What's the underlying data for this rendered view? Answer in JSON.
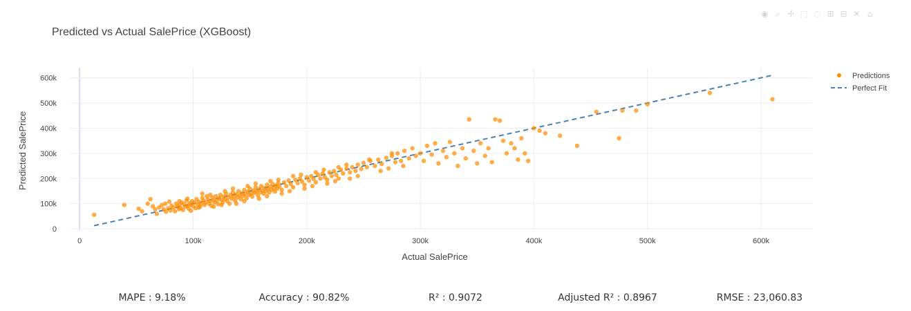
{
  "toolbar": {
    "icons": [
      "camera-icon",
      "zoom-icon",
      "pan-icon",
      "box-select-icon",
      "lasso-icon",
      "zoom-in-icon",
      "zoom-out-icon",
      "autoscale-icon",
      "home-icon"
    ]
  },
  "metrics": {
    "mape": "MAPE : 9.18%",
    "accuracy": "Accuracy : 90.82%",
    "r2": "R² : 0.9072",
    "adj_r2": "Adjusted R² : 0.8967",
    "rmse": "RMSE : 23,060.83"
  },
  "colors": {
    "points": "#ff8c00",
    "fit_line": "#4682b4",
    "grid": "#ececf4",
    "text": "#444444"
  },
  "chart_data": {
    "type": "scatter",
    "title": "Predicted vs Actual SalePrice (XGBoost)",
    "xlabel": "Actual SalePrice",
    "ylabel": "Predicted SalePrice",
    "xlim": [
      -8000,
      645000
    ],
    "ylim": [
      -5000,
      640000
    ],
    "xticks": [
      0,
      100000,
      200000,
      300000,
      400000,
      500000,
      600000
    ],
    "xtick_labels": [
      "0",
      "100k",
      "200k",
      "300k",
      "400k",
      "500k",
      "600k"
    ],
    "yticks": [
      0,
      100000,
      200000,
      300000,
      400000,
      500000,
      600000
    ],
    "ytick_labels": [
      "0",
      "100k",
      "200k",
      "300k",
      "400k",
      "500k",
      "600k"
    ],
    "grid": true,
    "legend_position": "top-right",
    "series": [
      {
        "name": "Predictions",
        "mode": "markers",
        "points": [
          [
            12789,
            56000
          ],
          [
            39300,
            95000
          ],
          [
            52000,
            80000
          ],
          [
            55000,
            70000
          ],
          [
            60000,
            100000
          ],
          [
            62383,
            118000
          ],
          [
            64500,
            90000
          ],
          [
            66500,
            78000
          ],
          [
            68000,
            60000
          ],
          [
            70000,
            85000
          ],
          [
            72500,
            95000
          ],
          [
            74000,
            78000
          ],
          [
            75500,
            100000
          ],
          [
            76000,
            68000
          ],
          [
            78000,
            82000
          ],
          [
            79000,
            108000
          ],
          [
            80000,
            73000
          ],
          [
            81000,
            92000
          ],
          [
            82500,
            85000
          ],
          [
            84000,
            70000
          ],
          [
            85000,
            100000
          ],
          [
            86000,
            88000
          ],
          [
            87500,
            78000
          ],
          [
            88000,
            95000
          ],
          [
            89000,
            83000
          ],
          [
            90000,
            105000
          ],
          [
            91000,
            75000
          ],
          [
            92000,
            98000
          ],
          [
            93000,
            88000
          ],
          [
            94000,
            112000
          ],
          [
            95000,
            92000
          ],
          [
            96000,
            80000
          ],
          [
            97000,
            102000
          ],
          [
            98000,
            95000
          ],
          [
            99000,
            110000
          ],
          [
            100000,
            90000
          ],
          [
            101000,
            105000
          ],
          [
            102000,
            82000
          ],
          [
            103000,
            118000
          ],
          [
            104000,
            97000
          ],
          [
            105000,
            108000
          ],
          [
            106000,
            88000
          ],
          [
            107000,
            100000
          ],
          [
            108000,
            123000
          ],
          [
            109000,
            112000
          ],
          [
            110000,
            95000
          ],
          [
            111000,
            105000
          ],
          [
            112000,
            130000
          ],
          [
            113000,
            118000
          ],
          [
            114000,
            100000
          ],
          [
            115000,
            110000
          ],
          [
            116000,
            92000
          ],
          [
            117000,
            125000
          ],
          [
            118000,
            115000
          ],
          [
            119000,
            105000
          ],
          [
            120000,
            130000
          ],
          [
            121000,
            112000
          ],
          [
            122000,
            98000
          ],
          [
            123000,
            122000
          ],
          [
            124000,
            135000
          ],
          [
            125000,
            115000
          ],
          [
            126000,
            105000
          ],
          [
            127000,
            128000
          ],
          [
            128000,
            118000
          ],
          [
            129000,
            140000
          ],
          [
            130000,
            110000
          ],
          [
            131000,
            125000
          ],
          [
            132000,
            100000
          ],
          [
            133000,
            135000
          ],
          [
            134000,
            120000
          ],
          [
            135000,
            145000
          ],
          [
            136000,
            128000
          ],
          [
            137000,
            112000
          ],
          [
            138000,
            138000
          ],
          [
            139000,
            125000
          ],
          [
            140000,
            150000
          ],
          [
            141000,
            132000
          ],
          [
            142000,
            118000
          ],
          [
            143000,
            142000
          ],
          [
            144000,
            130000
          ],
          [
            145000,
            155000
          ],
          [
            146000,
            138000
          ],
          [
            147000,
            122000
          ],
          [
            148000,
            148000
          ],
          [
            149000,
            135000
          ],
          [
            150000,
            160000
          ],
          [
            151000,
            140000
          ],
          [
            152000,
            128000
          ],
          [
            153000,
            152000
          ],
          [
            154000,
            143000
          ],
          [
            155000,
            165000
          ],
          [
            156000,
            148000
          ],
          [
            157000,
            132000
          ],
          [
            158000,
            158000
          ],
          [
            159000,
            145000
          ],
          [
            160000,
            170000
          ],
          [
            161000,
            152000
          ],
          [
            162000,
            140000
          ],
          [
            163000,
            162000
          ],
          [
            164000,
            150000
          ],
          [
            165000,
            175000
          ],
          [
            166000,
            158000
          ],
          [
            167000,
            145000
          ],
          [
            168000,
            168000
          ],
          [
            169000,
            155000
          ],
          [
            170000,
            178000
          ],
          [
            171000,
            162000
          ],
          [
            172000,
            148000
          ],
          [
            173000,
            172000
          ],
          [
            174000,
            160000
          ],
          [
            175000,
            182000
          ],
          [
            176000,
            168000
          ],
          [
            178000,
            155000
          ],
          [
            180000,
            185000
          ],
          [
            182000,
            170000
          ],
          [
            184000,
            192000
          ],
          [
            186000,
            178000
          ],
          [
            188000,
            165000
          ],
          [
            190000,
            195000
          ],
          [
            192000,
            182000
          ],
          [
            194000,
            200000
          ],
          [
            196000,
            188000
          ],
          [
            198000,
            175000
          ],
          [
            200000,
            205000
          ],
          [
            202000,
            192000
          ],
          [
            204000,
            210000
          ],
          [
            206000,
            198000
          ],
          [
            208000,
            185000
          ],
          [
            210000,
            215000
          ],
          [
            212000,
            200000
          ],
          [
            214000,
            220000
          ],
          [
            216000,
            205000
          ],
          [
            218000,
            195000
          ],
          [
            220000,
            225000
          ],
          [
            222000,
            210000
          ],
          [
            224000,
            230000
          ],
          [
            226000,
            215000
          ],
          [
            228000,
            200000
          ],
          [
            230000,
            235000
          ],
          [
            232000,
            220000
          ],
          [
            235000,
            240000
          ],
          [
            238000,
            225000
          ],
          [
            240000,
            245000
          ],
          [
            243000,
            230000
          ],
          [
            245000,
            255000
          ],
          [
            248000,
            238000
          ],
          [
            250000,
            262000
          ],
          [
            253000,
            245000
          ],
          [
            256000,
            270000
          ],
          [
            260000,
            250000
          ],
          [
            263000,
            275000
          ],
          [
            266000,
            258000
          ],
          [
            270000,
            282000
          ],
          [
            272000,
            240000
          ],
          [
            275000,
            290000
          ],
          [
            278000,
            265000
          ],
          [
            280000,
            300000
          ],
          [
            283000,
            270000
          ],
          [
            286000,
            310000
          ],
          [
            290000,
            280000
          ],
          [
            293000,
            320000
          ],
          [
            296000,
            290000
          ],
          [
            300000,
            300000
          ],
          [
            303000,
            270000
          ],
          [
            306000,
            330000
          ],
          [
            310000,
            295000
          ],
          [
            313000,
            340000
          ],
          [
            316000,
            260000
          ],
          [
            320000,
            310000
          ],
          [
            323000,
            285000
          ],
          [
            326000,
            345000
          ],
          [
            330000,
            300000
          ],
          [
            333000,
            250000
          ],
          [
            337000,
            320000
          ],
          [
            340000,
            280000
          ],
          [
            343000,
            435000
          ],
          [
            347000,
            310000
          ],
          [
            350000,
            260000
          ],
          [
            353000,
            340000
          ],
          [
            357000,
            290000
          ],
          [
            360000,
            320000
          ],
          [
            363000,
            265000
          ],
          [
            366000,
            435000
          ],
          [
            370000,
            430000
          ],
          [
            373000,
            350000
          ],
          [
            376000,
            300000
          ],
          [
            380000,
            340000
          ],
          [
            383000,
            320000
          ],
          [
            386000,
            275000
          ],
          [
            389000,
            360000
          ],
          [
            392000,
            300000
          ],
          [
            395000,
            270000
          ],
          [
            400000,
            400000
          ],
          [
            405000,
            390000
          ],
          [
            410000,
            380000
          ],
          [
            423000,
            370000
          ],
          [
            438000,
            330000
          ],
          [
            455000,
            465000
          ],
          [
            475000,
            360000
          ],
          [
            478000,
            470000
          ],
          [
            490000,
            470000
          ],
          [
            500000,
            495000
          ],
          [
            555000,
            540000
          ],
          [
            610000,
            515000
          ],
          [
            115000,
            135000
          ],
          [
            125000,
            95000
          ],
          [
            135000,
            160000
          ],
          [
            145000,
            110000
          ],
          [
            155000,
            180000
          ],
          [
            165000,
            130000
          ],
          [
            175000,
            195000
          ],
          [
            185000,
            150000
          ],
          [
            195000,
            215000
          ],
          [
            205000,
            170000
          ],
          [
            215000,
            235000
          ],
          [
            225000,
            190000
          ],
          [
            235000,
            255000
          ],
          [
            245000,
            210000
          ],
          [
            255000,
            275000
          ],
          [
            265000,
            230000
          ],
          [
            275000,
            300000
          ],
          [
            285000,
            250000
          ],
          [
            95000,
            120000
          ],
          [
            105000,
            85000
          ],
          [
            88000,
            110000
          ],
          [
            98000,
            72000
          ],
          [
            108000,
            140000
          ],
          [
            118000,
            88000
          ],
          [
            128000,
            150000
          ],
          [
            138000,
            100000
          ],
          [
            148000,
            170000
          ],
          [
            158000,
            120000
          ],
          [
            168000,
            190000
          ],
          [
            178000,
            140000
          ],
          [
            188000,
            210000
          ],
          [
            198000,
            160000
          ],
          [
            208000,
            225000
          ],
          [
            218000,
            180000
          ],
          [
            228000,
            245000
          ],
          [
            238000,
            200000
          ]
        ]
      },
      {
        "name": "Perfect Fit",
        "mode": "dashed-line",
        "x": [
          12789,
          610000
        ],
        "y": [
          12789,
          610000
        ]
      }
    ]
  }
}
